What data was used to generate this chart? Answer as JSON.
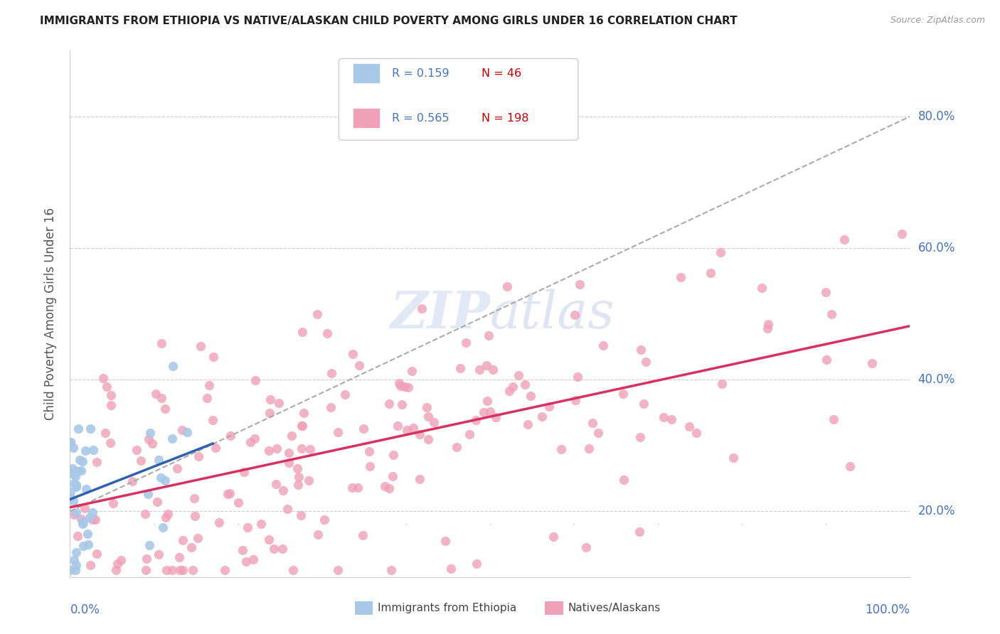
{
  "title": "IMMIGRANTS FROM ETHIOPIA VS NATIVE/ALASKAN CHILD POVERTY AMONG GIRLS UNDER 16 CORRELATION CHART",
  "source": "Source: ZipAtlas.com",
  "ylabel": "Child Poverty Among Girls Under 16",
  "ytick_labels": [
    "20.0%",
    "40.0%",
    "60.0%",
    "80.0%"
  ],
  "ytick_vals": [
    0.2,
    0.4,
    0.6,
    0.8
  ],
  "watermark": "ZIPAtlas",
  "legend1_r": "0.159",
  "legend1_n": "46",
  "legend2_r": "0.565",
  "legend2_n": "198",
  "blue_color": "#a8c8e8",
  "pink_color": "#f0a0b8",
  "blue_line_color": "#3060b0",
  "pink_line_color": "#d83060",
  "dash_line_color": "#aaaaaa",
  "title_color": "#222222",
  "axis_label_color": "#555555",
  "tick_label_color": "#4472c4",
  "r_color": "#4472c4",
  "n_color": "#cc0000",
  "xlim": [
    0.0,
    1.0
  ],
  "ylim": [
    0.1,
    0.9
  ],
  "grid_color": "#cccccc"
}
